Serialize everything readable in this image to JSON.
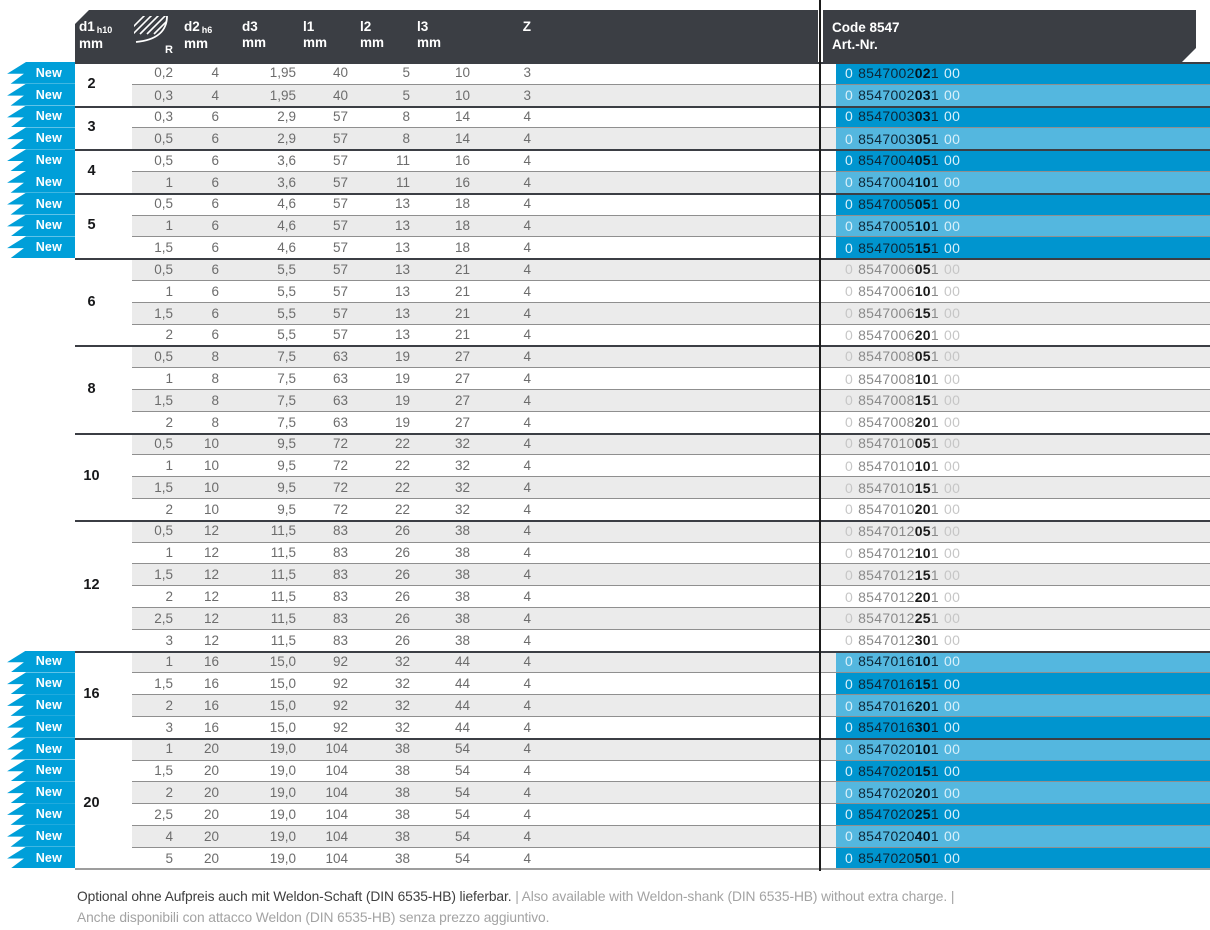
{
  "colors": {
    "accent_cyan": "#009FD9",
    "header_bg": "#3B3E44",
    "row_alt_bg": "#EBEBEB",
    "art_highlight_dark": "#0095CF",
    "art_highlight_light": "#54B7DF"
  },
  "table": {
    "badge_label": "New",
    "header": {
      "d1_label": "d1",
      "d1_sub": "h10",
      "d1_unit": "mm",
      "radius_label": "R",
      "d2_label": "d2",
      "d2_sub": "h6",
      "d2_unit": "mm",
      "d3_label": "d3",
      "d3_unit": "mm",
      "l1_label": "l1",
      "l1_unit": "mm",
      "l2_label": "l2",
      "l2_unit": "mm",
      "l3_label": "l3",
      "l3_unit": "mm",
      "z_label": "Z",
      "code_title": "Code 8547",
      "code_subtitle": "Art.-Nr."
    },
    "groups": [
      {
        "d1": "2",
        "rows": [
          {
            "is_new": true,
            "r": "0,2",
            "d2": "4",
            "d3": "1,95",
            "l1": "40",
            "l2": "5",
            "l3": "10",
            "z": "3",
            "art": {
              "pre": "0",
              "main": "8547002",
              "bold": "02",
              "post": "1",
              "suffix": "00"
            }
          },
          {
            "is_new": true,
            "r": "0,3",
            "d2": "4",
            "d3": "1,95",
            "l1": "40",
            "l2": "5",
            "l3": "10",
            "z": "3",
            "art": {
              "pre": "0",
              "main": "8547002",
              "bold": "03",
              "post": "1",
              "suffix": "00"
            }
          }
        ]
      },
      {
        "d1": "3",
        "rows": [
          {
            "is_new": true,
            "r": "0,3",
            "d2": "6",
            "d3": "2,9",
            "l1": "57",
            "l2": "8",
            "l3": "14",
            "z": "4",
            "art": {
              "pre": "0",
              "main": "8547003",
              "bold": "03",
              "post": "1",
              "suffix": "00"
            }
          },
          {
            "is_new": true,
            "r": "0,5",
            "d2": "6",
            "d3": "2,9",
            "l1": "57",
            "l2": "8",
            "l3": "14",
            "z": "4",
            "art": {
              "pre": "0",
              "main": "8547003",
              "bold": "05",
              "post": "1",
              "suffix": "00"
            }
          }
        ]
      },
      {
        "d1": "4",
        "rows": [
          {
            "is_new": true,
            "r": "0,5",
            "d2": "6",
            "d3": "3,6",
            "l1": "57",
            "l2": "11",
            "l3": "16",
            "z": "4",
            "art": {
              "pre": "0",
              "main": "8547004",
              "bold": "05",
              "post": "1",
              "suffix": "00"
            }
          },
          {
            "is_new": true,
            "r": "1",
            "d2": "6",
            "d3": "3,6",
            "l1": "57",
            "l2": "11",
            "l3": "16",
            "z": "4",
            "art": {
              "pre": "0",
              "main": "8547004",
              "bold": "10",
              "post": "1",
              "suffix": "00"
            }
          }
        ]
      },
      {
        "d1": "5",
        "rows": [
          {
            "is_new": true,
            "r": "0,5",
            "d2": "6",
            "d3": "4,6",
            "l1": "57",
            "l2": "13",
            "l3": "18",
            "z": "4",
            "art": {
              "pre": "0",
              "main": "8547005",
              "bold": "05",
              "post": "1",
              "suffix": "00"
            }
          },
          {
            "is_new": true,
            "r": "1",
            "d2": "6",
            "d3": "4,6",
            "l1": "57",
            "l2": "13",
            "l3": "18",
            "z": "4",
            "art": {
              "pre": "0",
              "main": "8547005",
              "bold": "10",
              "post": "1",
              "suffix": "00"
            }
          },
          {
            "is_new": true,
            "r": "1,5",
            "d2": "6",
            "d3": "4,6",
            "l1": "57",
            "l2": "13",
            "l3": "18",
            "z": "4",
            "art": {
              "pre": "0",
              "main": "8547005",
              "bold": "15",
              "post": "1",
              "suffix": "00"
            }
          }
        ]
      },
      {
        "d1": "6",
        "rows": [
          {
            "is_new": false,
            "r": "0,5",
            "d2": "6",
            "d3": "5,5",
            "l1": "57",
            "l2": "13",
            "l3": "21",
            "z": "4",
            "art": {
              "pre": "0",
              "main": "8547006",
              "bold": "05",
              "post": "1",
              "suffix": "00"
            }
          },
          {
            "is_new": false,
            "r": "1",
            "d2": "6",
            "d3": "5,5",
            "l1": "57",
            "l2": "13",
            "l3": "21",
            "z": "4",
            "art": {
              "pre": "0",
              "main": "8547006",
              "bold": "10",
              "post": "1",
              "suffix": "00"
            }
          },
          {
            "is_new": false,
            "r": "1,5",
            "d2": "6",
            "d3": "5,5",
            "l1": "57",
            "l2": "13",
            "l3": "21",
            "z": "4",
            "art": {
              "pre": "0",
              "main": "8547006",
              "bold": "15",
              "post": "1",
              "suffix": "00"
            }
          },
          {
            "is_new": false,
            "r": "2",
            "d2": "6",
            "d3": "5,5",
            "l1": "57",
            "l2": "13",
            "l3": "21",
            "z": "4",
            "art": {
              "pre": "0",
              "main": "8547006",
              "bold": "20",
              "post": "1",
              "suffix": "00"
            }
          }
        ]
      },
      {
        "d1": "8",
        "rows": [
          {
            "is_new": false,
            "r": "0,5",
            "d2": "8",
            "d3": "7,5",
            "l1": "63",
            "l2": "19",
            "l3": "27",
            "z": "4",
            "art": {
              "pre": "0",
              "main": "8547008",
              "bold": "05",
              "post": "1",
              "suffix": "00"
            }
          },
          {
            "is_new": false,
            "r": "1",
            "d2": "8",
            "d3": "7,5",
            "l1": "63",
            "l2": "19",
            "l3": "27",
            "z": "4",
            "art": {
              "pre": "0",
              "main": "8547008",
              "bold": "10",
              "post": "1",
              "suffix": "00"
            }
          },
          {
            "is_new": false,
            "r": "1,5",
            "d2": "8",
            "d3": "7,5",
            "l1": "63",
            "l2": "19",
            "l3": "27",
            "z": "4",
            "art": {
              "pre": "0",
              "main": "8547008",
              "bold": "15",
              "post": "1",
              "suffix": "00"
            }
          },
          {
            "is_new": false,
            "r": "2",
            "d2": "8",
            "d3": "7,5",
            "l1": "63",
            "l2": "19",
            "l3": "27",
            "z": "4",
            "art": {
              "pre": "0",
              "main": "8547008",
              "bold": "20",
              "post": "1",
              "suffix": "00"
            }
          }
        ]
      },
      {
        "d1": "10",
        "rows": [
          {
            "is_new": false,
            "r": "0,5",
            "d2": "10",
            "d3": "9,5",
            "l1": "72",
            "l2": "22",
            "l3": "32",
            "z": "4",
            "art": {
              "pre": "0",
              "main": "8547010",
              "bold": "05",
              "post": "1",
              "suffix": "00"
            }
          },
          {
            "is_new": false,
            "r": "1",
            "d2": "10",
            "d3": "9,5",
            "l1": "72",
            "l2": "22",
            "l3": "32",
            "z": "4",
            "art": {
              "pre": "0",
              "main": "8547010",
              "bold": "10",
              "post": "1",
              "suffix": "00"
            }
          },
          {
            "is_new": false,
            "r": "1,5",
            "d2": "10",
            "d3": "9,5",
            "l1": "72",
            "l2": "22",
            "l3": "32",
            "z": "4",
            "art": {
              "pre": "0",
              "main": "8547010",
              "bold": "15",
              "post": "1",
              "suffix": "00"
            }
          },
          {
            "is_new": false,
            "r": "2",
            "d2": "10",
            "d3": "9,5",
            "l1": "72",
            "l2": "22",
            "l3": "32",
            "z": "4",
            "art": {
              "pre": "0",
              "main": "8547010",
              "bold": "20",
              "post": "1",
              "suffix": "00"
            }
          }
        ]
      },
      {
        "d1": "12",
        "rows": [
          {
            "is_new": false,
            "r": "0,5",
            "d2": "12",
            "d3": "11,5",
            "l1": "83",
            "l2": "26",
            "l3": "38",
            "z": "4",
            "art": {
              "pre": "0",
              "main": "8547012",
              "bold": "05",
              "post": "1",
              "suffix": "00"
            }
          },
          {
            "is_new": false,
            "r": "1",
            "d2": "12",
            "d3": "11,5",
            "l1": "83",
            "l2": "26",
            "l3": "38",
            "z": "4",
            "art": {
              "pre": "0",
              "main": "8547012",
              "bold": "10",
              "post": "1",
              "suffix": "00"
            }
          },
          {
            "is_new": false,
            "r": "1,5",
            "d2": "12",
            "d3": "11,5",
            "l1": "83",
            "l2": "26",
            "l3": "38",
            "z": "4",
            "art": {
              "pre": "0",
              "main": "8547012",
              "bold": "15",
              "post": "1",
              "suffix": "00"
            }
          },
          {
            "is_new": false,
            "r": "2",
            "d2": "12",
            "d3": "11,5",
            "l1": "83",
            "l2": "26",
            "l3": "38",
            "z": "4",
            "art": {
              "pre": "0",
              "main": "8547012",
              "bold": "20",
              "post": "1",
              "suffix": "00"
            }
          },
          {
            "is_new": false,
            "r": "2,5",
            "d2": "12",
            "d3": "11,5",
            "l1": "83",
            "l2": "26",
            "l3": "38",
            "z": "4",
            "art": {
              "pre": "0",
              "main": "8547012",
              "bold": "25",
              "post": "1",
              "suffix": "00"
            }
          },
          {
            "is_new": false,
            "r": "3",
            "d2": "12",
            "d3": "11,5",
            "l1": "83",
            "l2": "26",
            "l3": "38",
            "z": "4",
            "art": {
              "pre": "0",
              "main": "8547012",
              "bold": "30",
              "post": "1",
              "suffix": "00"
            }
          }
        ]
      },
      {
        "d1": "16",
        "rows": [
          {
            "is_new": true,
            "r": "1",
            "d2": "16",
            "d3": "15,0",
            "l1": "92",
            "l2": "32",
            "l3": "44",
            "z": "4",
            "art": {
              "pre": "0",
              "main": "8547016",
              "bold": "10",
              "post": "1",
              "suffix": "00"
            }
          },
          {
            "is_new": true,
            "r": "1,5",
            "d2": "16",
            "d3": "15,0",
            "l1": "92",
            "l2": "32",
            "l3": "44",
            "z": "4",
            "art": {
              "pre": "0",
              "main": "8547016",
              "bold": "15",
              "post": "1",
              "suffix": "00"
            }
          },
          {
            "is_new": true,
            "r": "2",
            "d2": "16",
            "d3": "15,0",
            "l1": "92",
            "l2": "32",
            "l3": "44",
            "z": "4",
            "art": {
              "pre": "0",
              "main": "8547016",
              "bold": "20",
              "post": "1",
              "suffix": "00"
            }
          },
          {
            "is_new": true,
            "r": "3",
            "d2": "16",
            "d3": "15,0",
            "l1": "92",
            "l2": "32",
            "l3": "44",
            "z": "4",
            "art": {
              "pre": "0",
              "main": "8547016",
              "bold": "30",
              "post": "1",
              "suffix": "00"
            }
          }
        ]
      },
      {
        "d1": "20",
        "rows": [
          {
            "is_new": true,
            "r": "1",
            "d2": "20",
            "d3": "19,0",
            "l1": "104",
            "l2": "38",
            "l3": "54",
            "z": "4",
            "art": {
              "pre": "0",
              "main": "8547020",
              "bold": "10",
              "post": "1",
              "suffix": "00"
            }
          },
          {
            "is_new": true,
            "r": "1,5",
            "d2": "20",
            "d3": "19,0",
            "l1": "104",
            "l2": "38",
            "l3": "54",
            "z": "4",
            "art": {
              "pre": "0",
              "main": "8547020",
              "bold": "15",
              "post": "1",
              "suffix": "00"
            }
          },
          {
            "is_new": true,
            "r": "2",
            "d2": "20",
            "d3": "19,0",
            "l1": "104",
            "l2": "38",
            "l3": "54",
            "z": "4",
            "art": {
              "pre": "0",
              "main": "8547020",
              "bold": "20",
              "post": "1",
              "suffix": "00"
            }
          },
          {
            "is_new": true,
            "r": "2,5",
            "d2": "20",
            "d3": "19,0",
            "l1": "104",
            "l2": "38",
            "l3": "54",
            "z": "4",
            "art": {
              "pre": "0",
              "main": "8547020",
              "bold": "25",
              "post": "1",
              "suffix": "00"
            }
          },
          {
            "is_new": true,
            "r": "4",
            "d2": "20",
            "d3": "19,0",
            "l1": "104",
            "l2": "38",
            "l3": "54",
            "z": "4",
            "art": {
              "pre": "0",
              "main": "8547020",
              "bold": "40",
              "post": "1",
              "suffix": "00"
            }
          },
          {
            "is_new": true,
            "r": "5",
            "d2": "20",
            "d3": "19,0",
            "l1": "104",
            "l2": "38",
            "l3": "54",
            "z": "4",
            "art": {
              "pre": "0",
              "main": "8547020",
              "bold": "50",
              "post": "1",
              "suffix": "00"
            }
          }
        ]
      }
    ]
  },
  "footer": {
    "line1_de": "Optional ohne Aufpreis auch mit Weldon-Schaft (DIN 6535-HB) lieferbar.",
    "line1_rest": "| Also available with Weldon-shank (DIN 6535-HB) without extra charge. |",
    "line2_it": "Anche disponibili con attacco Weldon (DIN 6535-HB) senza prezzo aggiuntivo."
  }
}
